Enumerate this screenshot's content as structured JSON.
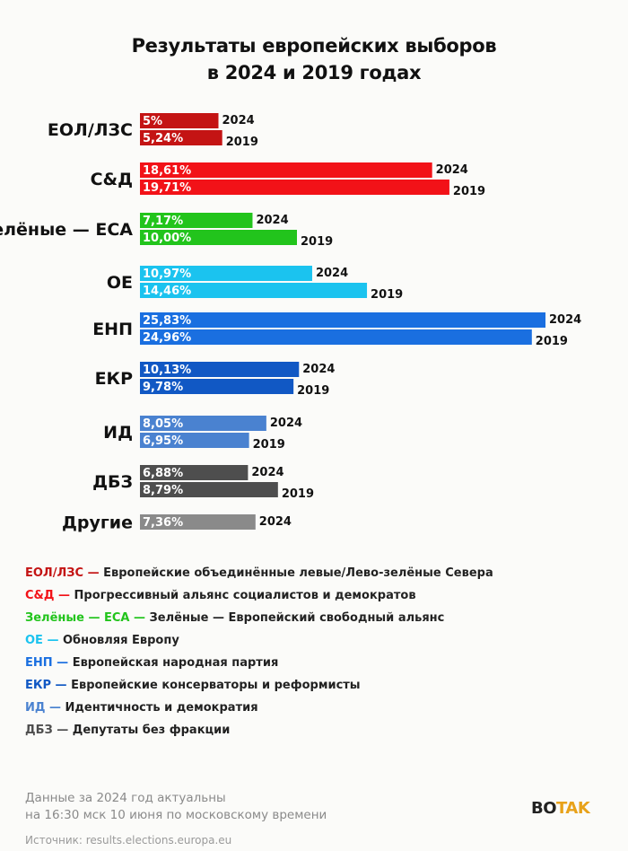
{
  "title_line1": "Результаты европейских выборов",
  "title_line2": "в 2024 и 2019 годах",
  "chart_data": {
    "type": "bar",
    "orientation": "horizontal",
    "categories": [
      "ЕОЛ/ЛЗС",
      "С&Д",
      "Зелёные — ЕСА",
      "ОЕ",
      "ЕНП",
      "ЕКР",
      "ИД",
      "ДБЗ",
      "Другие"
    ],
    "colors": [
      "#c41414",
      "#f21218",
      "#22c41c",
      "#1bc3ef",
      "#1a6fe0",
      "#1158c4",
      "#4a82d0",
      "#4e4e4e",
      "#8a8a8a"
    ],
    "series": [
      {
        "name": "2024",
        "values": [
          5,
          18.61,
          7.17,
          10.97,
          25.83,
          10.13,
          8.05,
          6.88,
          7.36
        ],
        "labels": [
          "5%",
          "18,61%",
          "7,17%",
          "10,97%",
          "25,83%",
          "10,13%",
          "8,05%",
          "6,88%",
          "7,36%"
        ]
      },
      {
        "name": "2019",
        "values": [
          5.24,
          19.71,
          10.0,
          14.46,
          24.96,
          9.78,
          6.95,
          8.79,
          null
        ],
        "labels": [
          "5,24%",
          "19,71%",
          "10,00%",
          "14,46%",
          "24,96%",
          "9,78%",
          "6,95%",
          "8,79%",
          null
        ]
      }
    ]
  },
  "legend": [
    {
      "abbr": "ЕОЛ/ЛЗС —",
      "text": "Европейские объединённые левые/Лево-зелёные Севера",
      "color": "#c41414"
    },
    {
      "abbr": "С&Д —",
      "text": "Прогрессивный альянс социалистов и демократов",
      "color": "#f21218"
    },
    {
      "abbr": "Зелёные — ЕСА —",
      "text": "Зелёные — Европейский свободный альянс",
      "color": "#22c41c"
    },
    {
      "abbr": "ОЕ —",
      "text": "Обновляя Европу",
      "color": "#1bc3ef"
    },
    {
      "abbr": "ЕНП —",
      "text": "Европейская народная партия",
      "color": "#1a6fe0"
    },
    {
      "abbr": "ЕКР —",
      "text": "Европейские консерваторы и реформисты",
      "color": "#1158c4"
    },
    {
      "abbr": "ИД —",
      "text": "Идентичность и демократия",
      "color": "#4a82d0"
    },
    {
      "abbr": "ДБЗ —",
      "text": "Депутаты без фракции",
      "color": "#4e4e4e"
    }
  ],
  "footnote_line1": "Данные за 2024 год актуальны",
  "footnote_line2": "на 16:30 мск 10 июня по московскому времени",
  "source": "Источник: results.elections.europa.eu",
  "logo_part1": "BO",
  "logo_part2": "TAK"
}
